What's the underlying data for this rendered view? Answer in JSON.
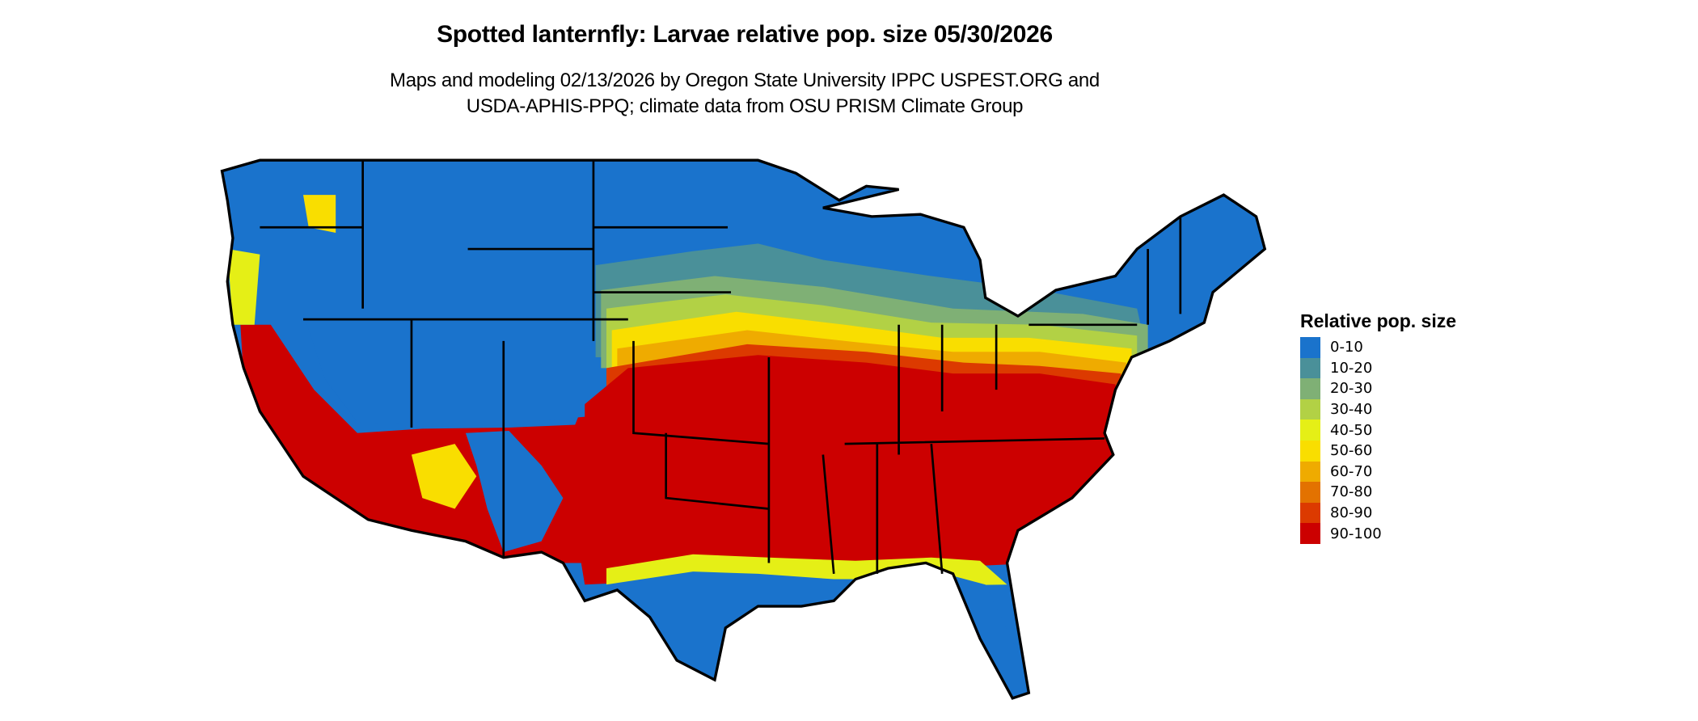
{
  "title": "Spotted lanternfly: Larvae relative pop. size 05/30/2026",
  "subtitle": {
    "line1": "Maps and modeling 02/13/2026 by Oregon State University IPPC USPEST.ORG and",
    "line2": "USDA-APHIS-PPQ; climate data from OSU PRISM Climate Group"
  },
  "legend": {
    "title": "Relative pop. size",
    "items": [
      {
        "label": "0-10",
        "color": "#1a73cc"
      },
      {
        "label": "10-20",
        "color": "#4a9099"
      },
      {
        "label": "20-30",
        "color": "#7fb075"
      },
      {
        "label": "30-40",
        "color": "#b2d145"
      },
      {
        "label": "40-50",
        "color": "#e5ef16"
      },
      {
        "label": "50-60",
        "color": "#f9de00"
      },
      {
        "label": "60-70",
        "color": "#efab00"
      },
      {
        "label": "70-80",
        "color": "#e37200"
      },
      {
        "label": "80-90",
        "color": "#dc3a00"
      },
      {
        "label": "90-100",
        "color": "#cc0000"
      }
    ]
  }
}
